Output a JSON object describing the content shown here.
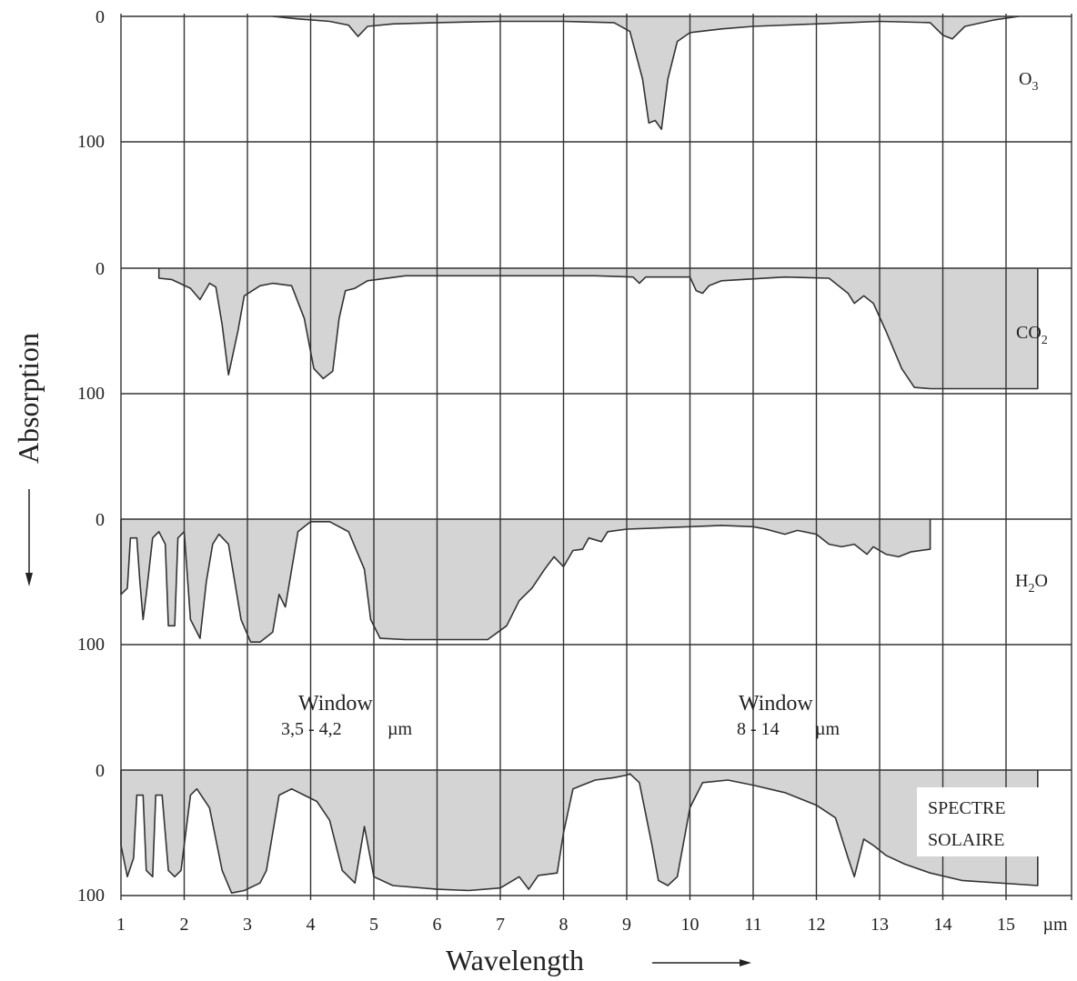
{
  "chart_data": {
    "type": "area",
    "xlabel": "Wavelength",
    "ylabel": "Absorption",
    "x_unit": "µm",
    "xlim": [
      1,
      15.5
    ],
    "x_ticks": [
      "1",
      "2",
      "3",
      "4",
      "5",
      "6",
      "7",
      "8",
      "9",
      "10",
      "11",
      "12",
      "13",
      "14",
      "15"
    ],
    "y_ticks": [
      "0",
      "100"
    ],
    "ylim": [
      0,
      100
    ],
    "y_direction": "absorption increases downward",
    "grid": true,
    "fill_color": "#d4d4d4",
    "line_color": "#333333",
    "panels": [
      {
        "label": "O3",
        "label_main": "O",
        "label_sub": "3",
        "fill_mode": "below",
        "points": [
          [
            3.4,
            0
          ],
          [
            3.8,
            2
          ],
          [
            4.3,
            4
          ],
          [
            4.6,
            7
          ],
          [
            4.75,
            16
          ],
          [
            4.9,
            8
          ],
          [
            5.3,
            6
          ],
          [
            6,
            5
          ],
          [
            7,
            4
          ],
          [
            8,
            4
          ],
          [
            8.8,
            5
          ],
          [
            9.05,
            12
          ],
          [
            9.25,
            50
          ],
          [
            9.35,
            85
          ],
          [
            9.45,
            83
          ],
          [
            9.55,
            90
          ],
          [
            9.65,
            50
          ],
          [
            9.8,
            20
          ],
          [
            10,
            13
          ],
          [
            10.5,
            10
          ],
          [
            11,
            8
          ],
          [
            12,
            6
          ],
          [
            13,
            4
          ],
          [
            13.8,
            5
          ],
          [
            14,
            15
          ],
          [
            14.15,
            18
          ],
          [
            14.35,
            8
          ],
          [
            14.8,
            3
          ],
          [
            15.2,
            0
          ]
        ]
      },
      {
        "label": "CO2",
        "label_main": "CO",
        "label_sub": "2",
        "fill_mode": "below",
        "points": [
          [
            1.6,
            0
          ],
          [
            1.6,
            8
          ],
          [
            1.8,
            9
          ],
          [
            2.1,
            16
          ],
          [
            2.25,
            25
          ],
          [
            2.4,
            12
          ],
          [
            2.5,
            15
          ],
          [
            2.6,
            45
          ],
          [
            2.7,
            85
          ],
          [
            2.85,
            50
          ],
          [
            2.95,
            22
          ],
          [
            3.2,
            14
          ],
          [
            3.4,
            12
          ],
          [
            3.7,
            14
          ],
          [
            3.9,
            40
          ],
          [
            4.05,
            80
          ],
          [
            4.2,
            88
          ],
          [
            4.35,
            82
          ],
          [
            4.45,
            40
          ],
          [
            4.55,
            18
          ],
          [
            4.7,
            16
          ],
          [
            4.9,
            10
          ],
          [
            5.5,
            6
          ],
          [
            6.5,
            6
          ],
          [
            7.5,
            6
          ],
          [
            8.5,
            6
          ],
          [
            9.1,
            7
          ],
          [
            9.2,
            12
          ],
          [
            9.3,
            7
          ],
          [
            10,
            7
          ],
          [
            10.1,
            18
          ],
          [
            10.2,
            20
          ],
          [
            10.3,
            14
          ],
          [
            10.5,
            10
          ],
          [
            11.5,
            7
          ],
          [
            12.2,
            8
          ],
          [
            12.5,
            20
          ],
          [
            12.6,
            28
          ],
          [
            12.75,
            22
          ],
          [
            12.9,
            28
          ],
          [
            13.1,
            50
          ],
          [
            13.35,
            80
          ],
          [
            13.55,
            95
          ],
          [
            13.8,
            96
          ],
          [
            15.5,
            96
          ],
          [
            15.5,
            0
          ]
        ]
      },
      {
        "label": "H2O",
        "label_main": "H",
        "label_main2": "O",
        "label_sub": "2",
        "fill_mode": "below",
        "points": [
          [
            1,
            0
          ],
          [
            1,
            60
          ],
          [
            1.1,
            55
          ],
          [
            1.15,
            15
          ],
          [
            1.25,
            15
          ],
          [
            1.3,
            50
          ],
          [
            1.35,
            80
          ],
          [
            1.4,
            60
          ],
          [
            1.5,
            15
          ],
          [
            1.6,
            10
          ],
          [
            1.7,
            20
          ],
          [
            1.75,
            85
          ],
          [
            1.85,
            85
          ],
          [
            1.9,
            15
          ],
          [
            2,
            10
          ],
          [
            2.1,
            80
          ],
          [
            2.25,
            95
          ],
          [
            2.35,
            50
          ],
          [
            2.45,
            20
          ],
          [
            2.55,
            12
          ],
          [
            2.7,
            20
          ],
          [
            2.8,
            50
          ],
          [
            2.9,
            80
          ],
          [
            3.05,
            98
          ],
          [
            3.2,
            98
          ],
          [
            3.4,
            90
          ],
          [
            3.5,
            60
          ],
          [
            3.6,
            70
          ],
          [
            3.8,
            10
          ],
          [
            4,
            2
          ],
          [
            4.3,
            2
          ],
          [
            4.6,
            10
          ],
          [
            4.85,
            40
          ],
          [
            4.95,
            80
          ],
          [
            5.1,
            95
          ],
          [
            5.5,
            96
          ],
          [
            6.4,
            96
          ],
          [
            6.8,
            96
          ],
          [
            7.1,
            85
          ],
          [
            7.3,
            65
          ],
          [
            7.5,
            55
          ],
          [
            7.7,
            40
          ],
          [
            7.85,
            30
          ],
          [
            8,
            38
          ],
          [
            8.15,
            25
          ],
          [
            8.3,
            24
          ],
          [
            8.4,
            15
          ],
          [
            8.6,
            18
          ],
          [
            8.7,
            10
          ],
          [
            9,
            8
          ],
          [
            9.5,
            7
          ],
          [
            10,
            6
          ],
          [
            10.5,
            5
          ],
          [
            11,
            6
          ],
          [
            11.2,
            8
          ],
          [
            11.5,
            12
          ],
          [
            11.7,
            9
          ],
          [
            12,
            12
          ],
          [
            12.2,
            20
          ],
          [
            12.4,
            22
          ],
          [
            12.6,
            20
          ],
          [
            12.8,
            28
          ],
          [
            12.9,
            22
          ],
          [
            13.1,
            28
          ],
          [
            13.3,
            30
          ],
          [
            13.5,
            26
          ],
          [
            13.8,
            24
          ],
          [
            13.8,
            0
          ]
        ]
      },
      {
        "label": "SPECTRE SOLAIRE",
        "label_line1": "SPECTRE",
        "label_line2": "SOLAIRE",
        "fill_mode": "above",
        "points": [
          [
            1,
            0
          ],
          [
            1,
            60
          ],
          [
            1.1,
            85
          ],
          [
            1.2,
            70
          ],
          [
            1.25,
            20
          ],
          [
            1.35,
            20
          ],
          [
            1.4,
            80
          ],
          [
            1.5,
            85
          ],
          [
            1.55,
            20
          ],
          [
            1.65,
            20
          ],
          [
            1.75,
            80
          ],
          [
            1.85,
            85
          ],
          [
            1.95,
            80
          ],
          [
            2.1,
            20
          ],
          [
            2.2,
            15
          ],
          [
            2.4,
            30
          ],
          [
            2.6,
            80
          ],
          [
            2.75,
            98
          ],
          [
            2.95,
            96
          ],
          [
            3.2,
            90
          ],
          [
            3.3,
            80
          ],
          [
            3.5,
            20
          ],
          [
            3.7,
            15
          ],
          [
            3.9,
            20
          ],
          [
            4.1,
            25
          ],
          [
            4.3,
            40
          ],
          [
            4.5,
            80
          ],
          [
            4.7,
            90
          ],
          [
            4.85,
            45
          ],
          [
            5,
            85
          ],
          [
            5.3,
            92
          ],
          [
            6,
            95
          ],
          [
            6.5,
            96
          ],
          [
            7,
            94
          ],
          [
            7.3,
            85
          ],
          [
            7.45,
            95
          ],
          [
            7.6,
            84
          ],
          [
            7.9,
            82
          ],
          [
            8,
            50
          ],
          [
            8.15,
            15
          ],
          [
            8.5,
            8
          ],
          [
            8.8,
            6
          ],
          [
            9,
            4
          ],
          [
            9.05,
            3
          ],
          [
            9.2,
            10
          ],
          [
            9.4,
            60
          ],
          [
            9.5,
            88
          ],
          [
            9.65,
            92
          ],
          [
            9.8,
            85
          ],
          [
            10,
            30
          ],
          [
            10.2,
            10
          ],
          [
            10.6,
            8
          ],
          [
            11,
            12
          ],
          [
            11.5,
            18
          ],
          [
            12,
            28
          ],
          [
            12.3,
            38
          ],
          [
            12.5,
            70
          ],
          [
            12.6,
            85
          ],
          [
            12.75,
            55
          ],
          [
            12.9,
            60
          ],
          [
            13.1,
            68
          ],
          [
            13.4,
            75
          ],
          [
            13.8,
            82
          ],
          [
            14.3,
            88
          ],
          [
            15.5,
            92
          ],
          [
            15.5,
            0
          ]
        ]
      }
    ],
    "annotations": [
      {
        "text": "Window",
        "range": "3,5 - 4,2",
        "unit": "µm"
      },
      {
        "text": "Window",
        "range": "8 - 14",
        "unit": "µm"
      }
    ]
  }
}
